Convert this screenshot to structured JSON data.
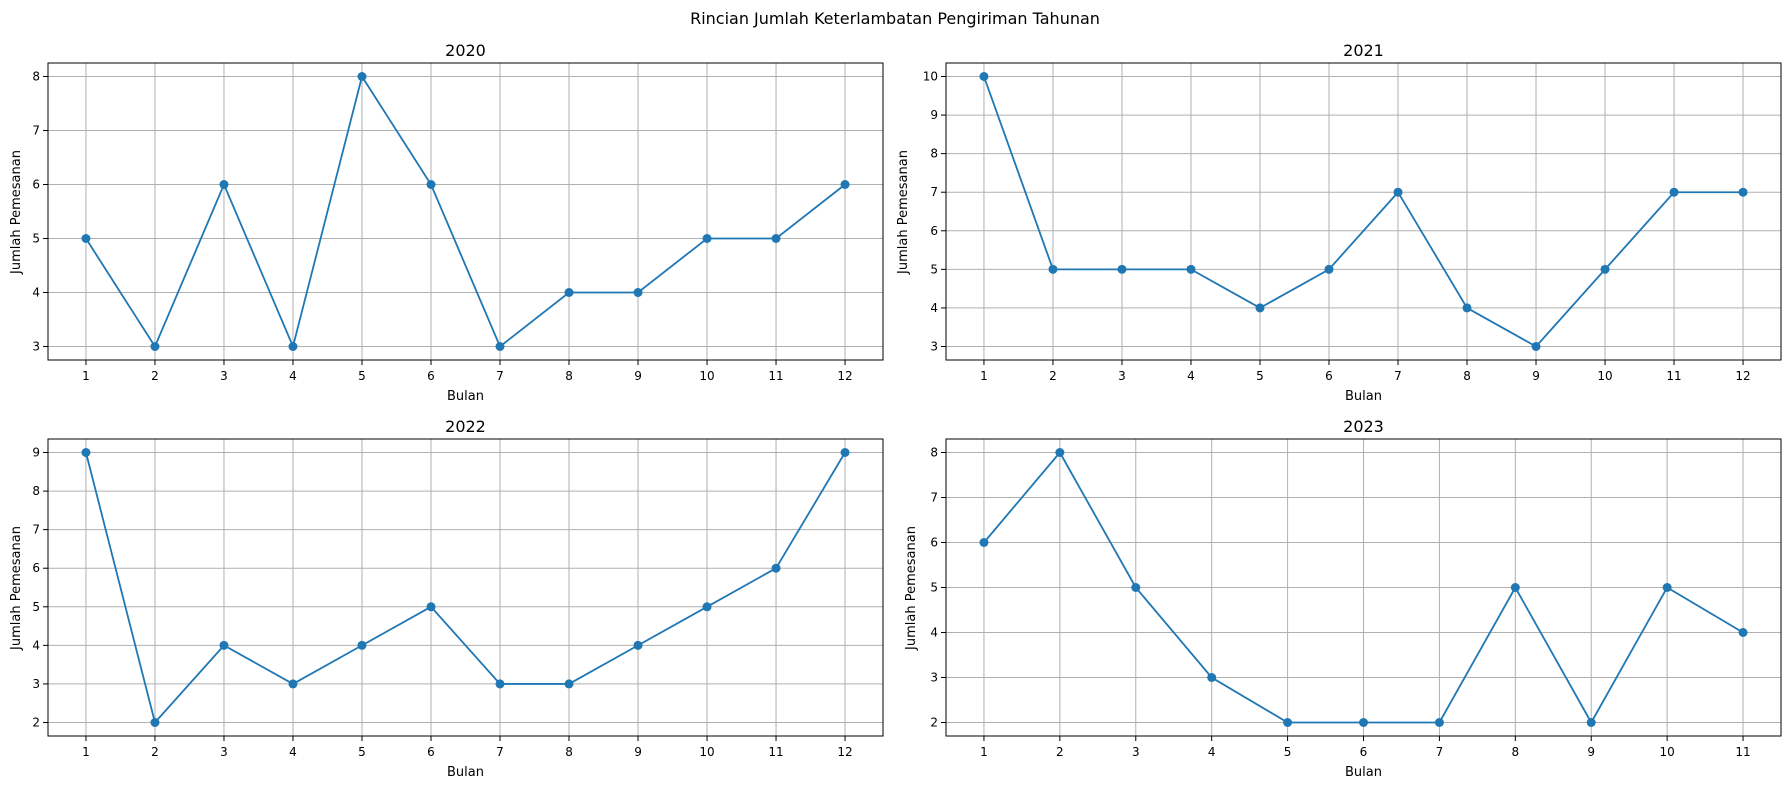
{
  "figure": {
    "title": "Rincian Jumlah Keterlambatan Pengiriman Tahunan"
  },
  "colors": {
    "line": "#1f77b4",
    "grid": "#b0b0b0"
  },
  "chart_data": [
    {
      "type": "line",
      "title": "2020",
      "xlabel": "Bulan",
      "ylabel": "Jumlah Pemesanan",
      "x": [
        1,
        2,
        3,
        4,
        5,
        6,
        7,
        8,
        9,
        10,
        11,
        12
      ],
      "y": [
        5,
        3,
        6,
        3,
        8,
        6,
        3,
        4,
        4,
        5,
        5,
        6
      ],
      "xticks": [
        1,
        2,
        3,
        4,
        5,
        6,
        7,
        8,
        9,
        10,
        11,
        12
      ],
      "yticks": [
        3,
        4,
        5,
        6,
        7,
        8
      ],
      "xlim": [
        0.45,
        12.55
      ],
      "ylim": [
        2.75,
        8.25
      ],
      "grid": true,
      "marker": "circle"
    },
    {
      "type": "line",
      "title": "2021",
      "xlabel": "Bulan",
      "ylabel": "Jumlah Pemesanan",
      "x": [
        1,
        2,
        3,
        4,
        5,
        6,
        7,
        8,
        9,
        10,
        11,
        12
      ],
      "y": [
        10,
        5,
        5,
        5,
        4,
        5,
        7,
        4,
        3,
        5,
        7,
        7
      ],
      "xticks": [
        1,
        2,
        3,
        4,
        5,
        6,
        7,
        8,
        9,
        10,
        11,
        12
      ],
      "yticks": [
        3,
        4,
        5,
        6,
        7,
        8,
        9,
        10
      ],
      "xlim": [
        0.45,
        12.55
      ],
      "ylim": [
        2.65,
        10.35
      ],
      "grid": true,
      "marker": "circle"
    },
    {
      "type": "line",
      "title": "2022",
      "xlabel": "Bulan",
      "ylabel": "Jumlah Pemesanan",
      "x": [
        1,
        2,
        3,
        4,
        5,
        6,
        7,
        8,
        9,
        10,
        11,
        12
      ],
      "y": [
        9,
        2,
        4,
        3,
        4,
        5,
        3,
        3,
        4,
        5,
        6,
        9
      ],
      "xticks": [
        1,
        2,
        3,
        4,
        5,
        6,
        7,
        8,
        9,
        10,
        11,
        12
      ],
      "yticks": [
        2,
        3,
        4,
        5,
        6,
        7,
        8,
        9
      ],
      "xlim": [
        0.45,
        12.55
      ],
      "ylim": [
        1.65,
        9.35
      ],
      "grid": true,
      "marker": "circle"
    },
    {
      "type": "line",
      "title": "2023",
      "xlabel": "Bulan",
      "ylabel": "Jumlah Pemesanan",
      "x": [
        1,
        2,
        3,
        4,
        5,
        6,
        7,
        8,
        9,
        10,
        11
      ],
      "y": [
        6,
        8,
        5,
        3,
        2,
        2,
        2,
        5,
        2,
        5,
        4
      ],
      "xticks": [
        1,
        2,
        3,
        4,
        5,
        6,
        7,
        8,
        9,
        10,
        11
      ],
      "yticks": [
        2,
        3,
        4,
        5,
        6,
        7,
        8
      ],
      "xlim": [
        0.5,
        11.5
      ],
      "ylim": [
        1.7,
        8.3
      ],
      "grid": true,
      "marker": "circle"
    }
  ]
}
